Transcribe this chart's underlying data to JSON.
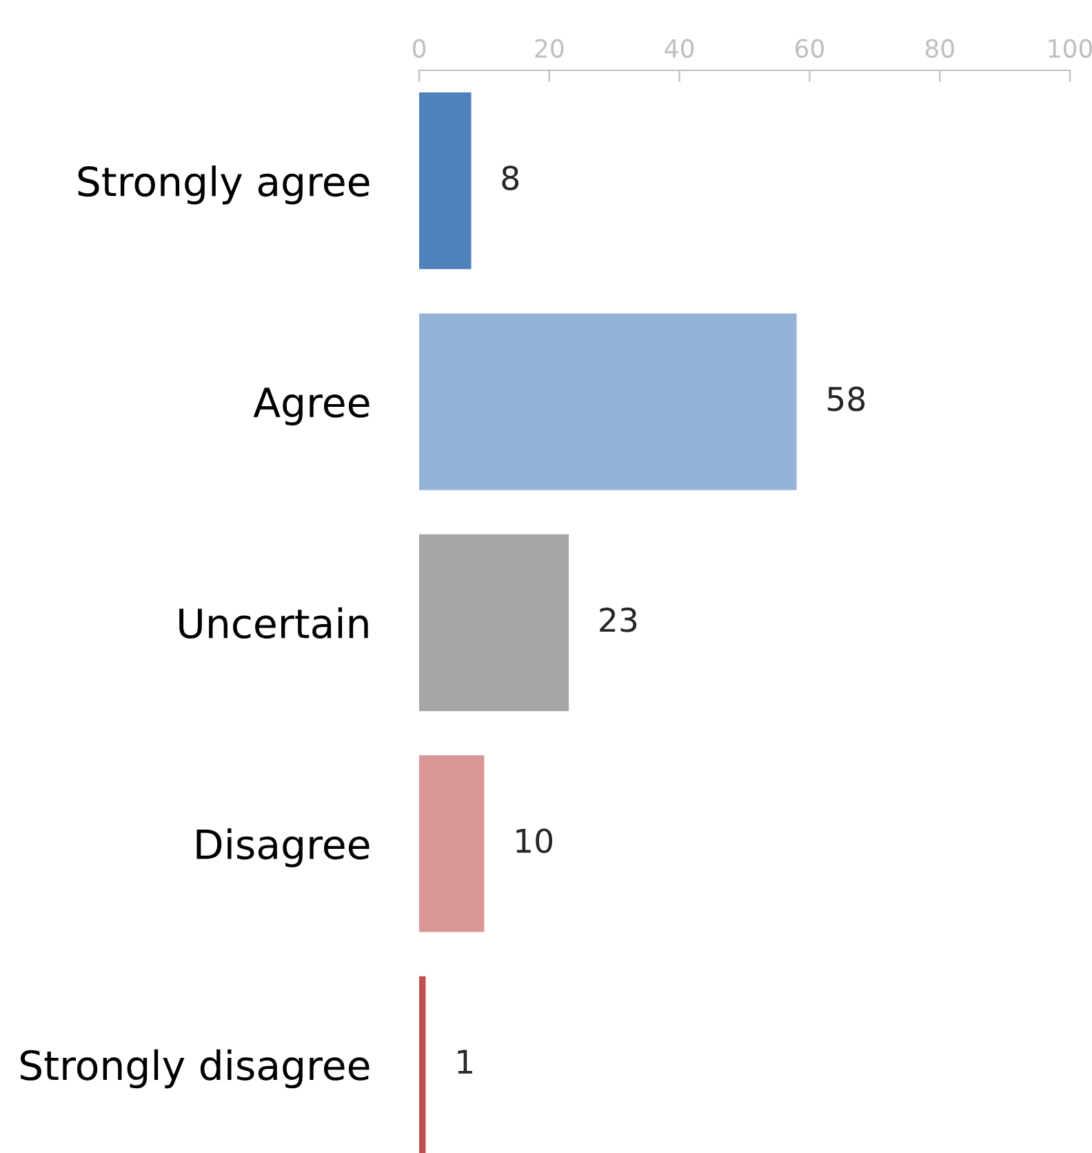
{
  "chart_data": {
    "type": "bar",
    "orientation": "horizontal",
    "categories": [
      "Strongly agree",
      "Agree",
      "Uncertain",
      "Disagree",
      "Strongly disagree"
    ],
    "values": [
      8,
      58,
      23,
      10,
      1
    ],
    "colors": [
      "#4f81bd",
      "#95b3d7",
      "#a6a6a6",
      "#da9694",
      "#c0504d"
    ],
    "xlim": [
      0,
      100
    ],
    "xticks": [
      0,
      20,
      40,
      60,
      80,
      100
    ],
    "data_labels": true,
    "grid": false,
    "legend": false
  }
}
